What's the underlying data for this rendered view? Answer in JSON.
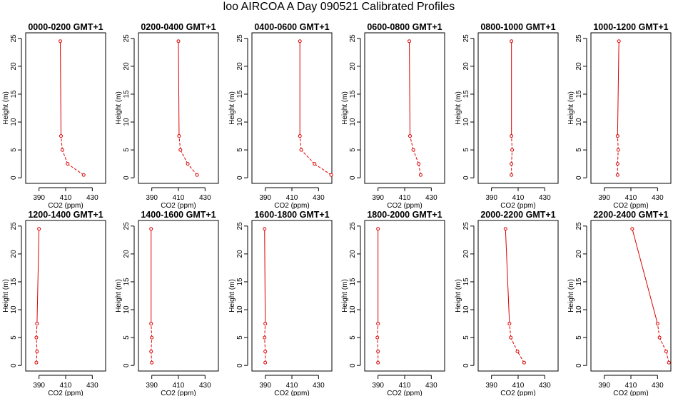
{
  "title": "loo AIRCOA A  Day 090521  Calibrated Profiles",
  "colors": {
    "line": "#dd0000",
    "axis": "#000000",
    "background": "#ffffff"
  },
  "chart_data": [
    {
      "type": "line",
      "title": "0000-0200 GMT+1",
      "xlabel": "CO2 (ppm)",
      "ylabel": "Height (m)",
      "xlim": [
        380,
        440
      ],
      "ylim": [
        -1,
        26
      ],
      "xticks": [
        390,
        410,
        430
      ],
      "yticks": [
        0,
        5,
        10,
        15,
        20,
        25
      ],
      "x": [
        423.5,
        411.5,
        407.5,
        406.5,
        406.0
      ],
      "y": [
        0.5,
        2.5,
        5.0,
        7.5,
        24.5
      ],
      "dashed_segments": [
        0,
        1,
        2
      ]
    },
    {
      "type": "line",
      "title": "0200-0400 GMT+1",
      "xlabel": "CO2 (ppm)",
      "ylabel": "Height (m)",
      "xlim": [
        380,
        440
      ],
      "ylim": [
        -1,
        26
      ],
      "xticks": [
        390,
        410,
        430
      ],
      "yticks": [
        0,
        5,
        10,
        15,
        20,
        25
      ],
      "x": [
        424.0,
        417.0,
        411.5,
        410.5,
        410.0
      ],
      "y": [
        0.5,
        2.5,
        5.0,
        7.5,
        24.5
      ],
      "dashed_segments": [
        0,
        1,
        2
      ]
    },
    {
      "type": "line",
      "title": "0400-0600 GMT+1",
      "xlabel": "CO2 (ppm)",
      "ylabel": "Height (m)",
      "xlim": [
        380,
        440
      ],
      "ylim": [
        -1,
        26
      ],
      "xticks": [
        390,
        410,
        430
      ],
      "yticks": [
        0,
        5,
        10,
        15,
        20,
        25
      ],
      "x": [
        439.5,
        427.0,
        417.0,
        416.0,
        416.0
      ],
      "y": [
        0.5,
        2.5,
        5.0,
        7.5,
        24.5
      ],
      "dashed_segments": [
        0,
        1,
        2
      ]
    },
    {
      "type": "line",
      "title": "0600-0800 GMT+1",
      "xlabel": "CO2 (ppm)",
      "ylabel": "Height (m)",
      "xlim": [
        380,
        440
      ],
      "ylim": [
        -1,
        26
      ],
      "xticks": [
        390,
        410,
        430
      ],
      "yticks": [
        0,
        5,
        10,
        15,
        20,
        25
      ],
      "x": [
        422.0,
        420.5,
        416.5,
        414.0,
        413.5
      ],
      "y": [
        0.5,
        2.5,
        5.0,
        7.5,
        24.5
      ],
      "dashed_segments": [
        0,
        1,
        2
      ]
    },
    {
      "type": "line",
      "title": "0800-1000 GMT+1",
      "xlabel": "CO2 (ppm)",
      "ylabel": "Height (m)",
      "xlim": [
        380,
        440
      ],
      "ylim": [
        -1,
        26
      ],
      "xticks": [
        390,
        410,
        430
      ],
      "yticks": [
        0,
        5,
        10,
        15,
        20,
        25
      ],
      "x": [
        405.0,
        405.0,
        405.5,
        405.0,
        405.0
      ],
      "y": [
        0.5,
        2.5,
        5.0,
        7.5,
        24.5
      ],
      "dashed_segments": [
        0,
        1,
        2
      ]
    },
    {
      "type": "line",
      "title": "1000-1200 GMT+1",
      "xlabel": "CO2 (ppm)",
      "ylabel": "Height (m)",
      "xlim": [
        380,
        440
      ],
      "ylim": [
        -1,
        26
      ],
      "xticks": [
        390,
        410,
        430
      ],
      "yticks": [
        0,
        5,
        10,
        15,
        20,
        25
      ],
      "x": [
        400.0,
        400.0,
        400.5,
        400.0,
        401.0
      ],
      "y": [
        0.5,
        2.5,
        5.0,
        7.5,
        24.5
      ],
      "dashed_segments": [
        0,
        1,
        2
      ]
    },
    {
      "type": "line",
      "title": "1200-1400 GMT+1",
      "xlabel": "CO2 (ppm)",
      "ylabel": "Height (m)",
      "xlim": [
        380,
        440
      ],
      "ylim": [
        -1,
        26
      ],
      "xticks": [
        390,
        410,
        430
      ],
      "yticks": [
        0,
        5,
        10,
        15,
        20,
        25
      ],
      "x": [
        388.0,
        388.5,
        388.0,
        388.5,
        390.0
      ],
      "y": [
        0.5,
        2.5,
        5.0,
        7.5,
        24.5
      ],
      "dashed_segments": [
        0,
        1,
        2
      ]
    },
    {
      "type": "line",
      "title": "1400-1600 GMT+1",
      "xlabel": "CO2 (ppm)",
      "ylabel": "Height (m)",
      "xlim": [
        380,
        440
      ],
      "ylim": [
        -1,
        26
      ],
      "xticks": [
        390,
        410,
        430
      ],
      "yticks": [
        0,
        5,
        10,
        15,
        20,
        25
      ],
      "x": [
        390.0,
        389.5,
        390.0,
        389.5,
        389.5
      ],
      "y": [
        0.5,
        2.5,
        5.0,
        7.5,
        24.5
      ],
      "dashed_segments": [
        0,
        1,
        2
      ]
    },
    {
      "type": "line",
      "title": "1600-1800 GMT+1",
      "xlabel": "CO2 (ppm)",
      "ylabel": "Height (m)",
      "xlim": [
        380,
        440
      ],
      "ylim": [
        -1,
        26
      ],
      "xticks": [
        390,
        410,
        430
      ],
      "yticks": [
        0,
        5,
        10,
        15,
        20,
        25
      ],
      "x": [
        390.0,
        390.0,
        389.5,
        390.0,
        389.5
      ],
      "y": [
        0.5,
        2.5,
        5.0,
        7.5,
        24.5
      ],
      "dashed_segments": [
        0,
        1,
        2
      ]
    },
    {
      "type": "line",
      "title": "1800-2000 GMT+1",
      "xlabel": "CO2 (ppm)",
      "ylabel": "Height (m)",
      "xlim": [
        380,
        440
      ],
      "ylim": [
        -1,
        26
      ],
      "xticks": [
        390,
        410,
        430
      ],
      "yticks": [
        0,
        5,
        10,
        15,
        20,
        25
      ],
      "x": [
        390.0,
        390.0,
        389.5,
        390.0,
        390.0
      ],
      "y": [
        0.5,
        2.5,
        5.0,
        7.5,
        24.5
      ],
      "dashed_segments": [
        0,
        1,
        2
      ]
    },
    {
      "type": "line",
      "title": "2000-2200 GMT+1",
      "xlabel": "CO2 (ppm)",
      "ylabel": "Height (m)",
      "xlim": [
        380,
        440
      ],
      "ylim": [
        -1,
        26
      ],
      "xticks": [
        390,
        410,
        430
      ],
      "yticks": [
        0,
        5,
        10,
        15,
        20,
        25
      ],
      "x": [
        414.5,
        409.5,
        404.5,
        403.5,
        400.5
      ],
      "y": [
        0.5,
        2.5,
        5.0,
        7.5,
        24.5
      ],
      "dashed_segments": [
        0,
        1,
        2
      ]
    },
    {
      "type": "line",
      "title": "2200-2400 GMT+1",
      "xlabel": "CO2 (ppm)",
      "ylabel": "Height (m)",
      "xlim": [
        380,
        440
      ],
      "ylim": [
        -1,
        26
      ],
      "xticks": [
        390,
        410,
        430
      ],
      "yticks": [
        0,
        5,
        10,
        15,
        20,
        25
      ],
      "x": [
        438.5,
        436.5,
        431.5,
        430.0,
        411.0
      ],
      "y": [
        0.5,
        2.5,
        5.0,
        7.5,
        24.5
      ],
      "dashed_segments": [
        0,
        1,
        2
      ]
    }
  ]
}
